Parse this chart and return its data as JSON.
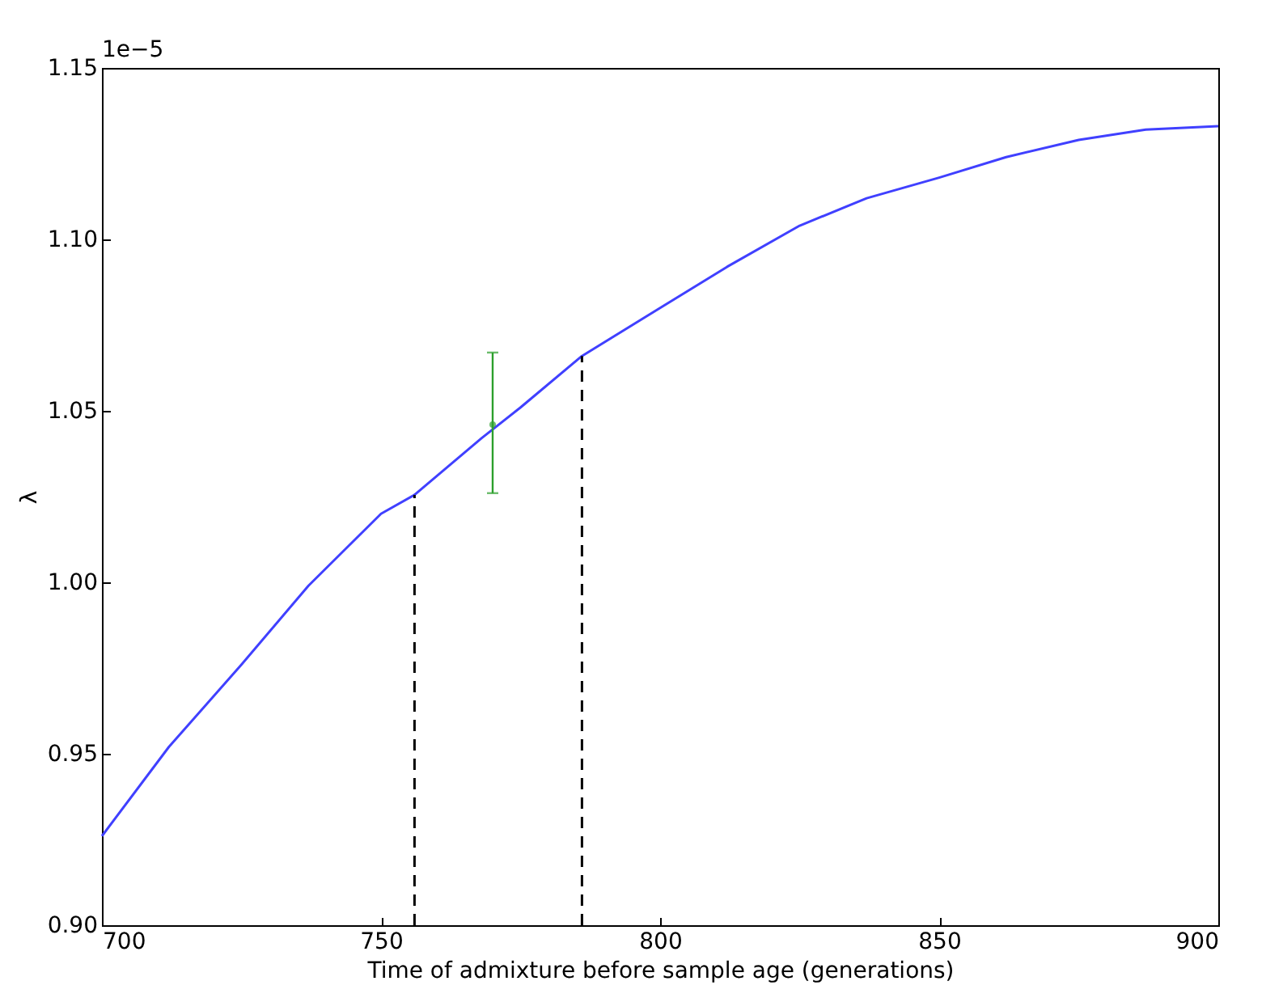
{
  "chart_data": {
    "type": "line",
    "xlabel": "Time of admixture before sample age (generations)",
    "ylabel": "λ",
    "annotations": [
      "1e−5"
    ],
    "xlim": [
      700,
      900
    ],
    "xticks": [
      700,
      750,
      800,
      850,
      900
    ],
    "ylim": [
      0.9,
      1.15
    ],
    "yticks": [
      {
        "value": 0.9,
        "label": "0.90"
      },
      0.95,
      {
        "value": 1.0,
        "label": "1.00"
      },
      1.05,
      {
        "value": 1.1,
        "label": "1.10"
      },
      1.15
    ],
    "series": [
      {
        "color": "#4040ff",
        "x": [
          700,
          712,
          725,
          737,
          750,
          756,
          768,
          775,
          786,
          800,
          812,
          825,
          837,
          850,
          862,
          875,
          887,
          900
        ],
        "values": [
          0.926,
          0.952,
          0.976,
          0.999,
          1.02,
          1.0255,
          1.042,
          1.051,
          1.066,
          1.08,
          1.092,
          1.104,
          1.112,
          1.118,
          1.124,
          1.129,
          1.132,
          1.133
        ]
      },
      {
        "color": "#000000",
        "line_style": "dashed",
        "x": [
          756,
          756
        ],
        "values": [
          0.9,
          1.0255
        ]
      },
      {
        "color": "#000000",
        "line_style": "dashed",
        "x": [
          786,
          786
        ],
        "values": [
          0.9,
          1.066
        ]
      },
      {
        "type": "scatter",
        "color": "#2ca02c",
        "x": [
          770
        ],
        "values": [
          1.046
        ],
        "errors": [
          [
            1.026,
            1.067
          ]
        ]
      }
    ]
  }
}
